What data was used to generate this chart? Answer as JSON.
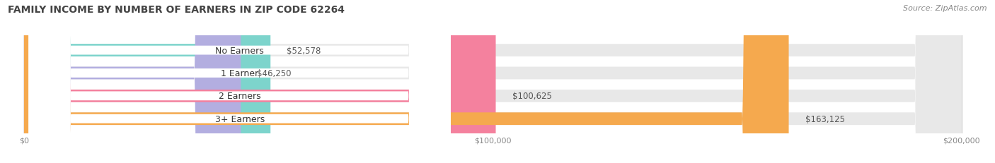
{
  "title": "FAMILY INCOME BY NUMBER OF EARNERS IN ZIP CODE 62264",
  "source": "Source: ZipAtlas.com",
  "categories": [
    "No Earners",
    "1 Earner",
    "2 Earners",
    "3+ Earners"
  ],
  "values": [
    52578,
    46250,
    100625,
    163125
  ],
  "bar_colors": [
    "#7dd4cc",
    "#b3aee0",
    "#f4819e",
    "#f5a94e"
  ],
  "value_labels": [
    "$52,578",
    "$46,250",
    "$100,625",
    "$163,125"
  ],
  "xmax": 200000,
  "xticks": [
    0,
    100000,
    200000
  ],
  "xtick_labels": [
    "$0",
    "$100,000",
    "$200,000"
  ],
  "fig_bg_color": "#ffffff",
  "bar_height": 0.55,
  "title_fontsize": 10,
  "source_fontsize": 8,
  "label_fontsize": 9,
  "value_fontsize": 8.5
}
